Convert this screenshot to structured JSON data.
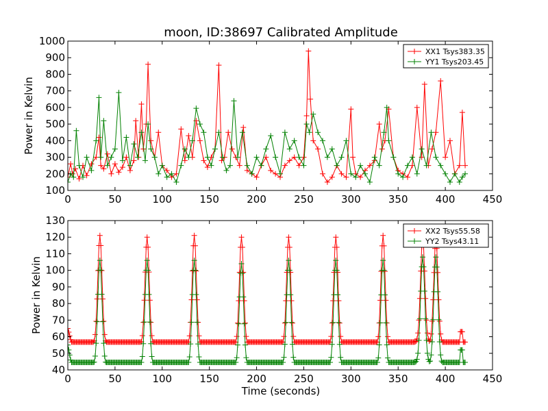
{
  "figure": {
    "title": "moon, ID:38697 Calibrated Amplitude",
    "xlabel": "Time (seconds)"
  },
  "chart_data": [
    {
      "type": "line",
      "ylabel": "Power in Kelvin",
      "xlim": [
        0,
        450
      ],
      "ylim": [
        100,
        1000
      ],
      "xticks": [
        0,
        50,
        100,
        150,
        200,
        250,
        300,
        350,
        400,
        450
      ],
      "yticks": [
        100,
        200,
        300,
        400,
        500,
        600,
        700,
        800,
        900,
        1000
      ],
      "grid": false,
      "legend_position": "top-right",
      "marker": "+",
      "series": [
        {
          "name": "XX1 Tsys383.35",
          "color": "#ff0000",
          "x": [
            0,
            3,
            5,
            8,
            12,
            16,
            20,
            25,
            30,
            33,
            35,
            38,
            42,
            46,
            50,
            54,
            58,
            62,
            66,
            70,
            72,
            75,
            78,
            80,
            83,
            85,
            88,
            92,
            96,
            100,
            105,
            110,
            115,
            120,
            124,
            128,
            132,
            136,
            140,
            144,
            148,
            152,
            156,
            160,
            163,
            166,
            170,
            174,
            178,
            182,
            186,
            190,
            195,
            200,
            205,
            210,
            215,
            220,
            225,
            230,
            235,
            240,
            245,
            250,
            253,
            255,
            257,
            260,
            265,
            270,
            275,
            280,
            285,
            290,
            295,
            300,
            302,
            305,
            310,
            315,
            320,
            325,
            330,
            333,
            336,
            340,
            345,
            350,
            355,
            360,
            365,
            370,
            375,
            378,
            382,
            386,
            390,
            395,
            400,
            405,
            410,
            415,
            418,
            421
          ],
          "values": [
            180,
            260,
            200,
            230,
            170,
            250,
            190,
            260,
            300,
            420,
            250,
            230,
            320,
            200,
            260,
            210,
            240,
            300,
            220,
            280,
            520,
            300,
            620,
            350,
            500,
            860,
            400,
            300,
            450,
            250,
            220,
            180,
            200,
            470,
            280,
            430,
            300,
            520,
            400,
            280,
            240,
            300,
            350,
            855,
            280,
            300,
            450,
            350,
            300,
            250,
            480,
            220,
            200,
            180,
            250,
            300,
            220,
            200,
            180,
            250,
            280,
            300,
            250,
            300,
            550,
            940,
            650,
            400,
            350,
            200,
            150,
            180,
            250,
            200,
            180,
            590,
            300,
            200,
            180,
            220,
            250,
            280,
            500,
            350,
            400,
            590,
            300,
            220,
            200,
            180,
            250,
            600,
            300,
            740,
            250,
            350,
            450,
            760,
            300,
            400,
            200,
            250,
            570,
            250
          ]
        },
        {
          "name": "YY1 Tsys203.45",
          "color": "#008000",
          "x": [
            0,
            3,
            6,
            9,
            12,
            16,
            20,
            25,
            30,
            33,
            35,
            38,
            42,
            46,
            50,
            54,
            58,
            62,
            66,
            70,
            74,
            78,
            82,
            85,
            88,
            92,
            96,
            100,
            105,
            110,
            115,
            120,
            124,
            128,
            132,
            136,
            140,
            144,
            148,
            152,
            156,
            160,
            164,
            168,
            172,
            176,
            180,
            185,
            190,
            195,
            200,
            205,
            210,
            215,
            220,
            225,
            230,
            235,
            240,
            245,
            250,
            253,
            256,
            260,
            265,
            270,
            275,
            280,
            285,
            290,
            295,
            300,
            305,
            310,
            315,
            320,
            325,
            330,
            335,
            338,
            340,
            345,
            350,
            355,
            360,
            365,
            370,
            375,
            380,
            385,
            390,
            395,
            400,
            405,
            410,
            415,
            418,
            421
          ],
          "values": [
            150,
            200,
            180,
            460,
            250,
            180,
            300,
            220,
            400,
            660,
            300,
            520,
            250,
            300,
            350,
            690,
            280,
            420,
            250,
            380,
            300,
            450,
            280,
            500,
            350,
            300,
            200,
            250,
            180,
            200,
            150,
            250,
            350,
            300,
            400,
            595,
            500,
            450,
            300,
            250,
            350,
            450,
            300,
            220,
            250,
            640,
            300,
            450,
            250,
            200,
            300,
            250,
            350,
            430,
            300,
            200,
            450,
            350,
            400,
            300,
            250,
            500,
            450,
            560,
            450,
            400,
            300,
            350,
            250,
            300,
            400,
            200,
            180,
            250,
            200,
            150,
            300,
            250,
            450,
            600,
            400,
            300,
            200,
            180,
            250,
            300,
            200,
            350,
            250,
            450,
            300,
            250,
            200,
            150,
            200,
            150,
            180,
            200
          ]
        }
      ]
    },
    {
      "type": "line",
      "ylabel": "Power in Kelvin",
      "xlabel": "Time (seconds)",
      "xlim": [
        0,
        450
      ],
      "ylim": [
        40,
        130
      ],
      "xticks": [
        0,
        50,
        100,
        150,
        200,
        250,
        300,
        350,
        400,
        450
      ],
      "yticks": [
        40,
        50,
        60,
        70,
        80,
        90,
        100,
        110,
        120,
        130
      ],
      "grid": false,
      "legend_position": "top-right",
      "marker": "+",
      "series": [
        {
          "name": "XX2 Tsys55.58",
          "color": "#ff0000",
          "baseline": [
            [
              0,
              65
            ],
            [
              4,
              56
            ],
            [
              30,
              56
            ],
            [
              40,
              55
            ],
            [
              80,
              55
            ],
            [
              90,
              55
            ],
            [
              130,
              55
            ],
            [
              140,
              54.5
            ],
            [
              180,
              54.5
            ],
            [
              190,
              54.5
            ],
            [
              230,
              54.5
            ],
            [
              240,
              54.5
            ],
            [
              280,
              54.5
            ],
            [
              292,
              54.5
            ],
            [
              300,
              54
            ],
            [
              330,
              54
            ],
            [
              345,
              55
            ],
            [
              365,
              55
            ],
            [
              370,
              57
            ],
            [
              395,
              56
            ],
            [
              400,
              54
            ],
            [
              415,
              54
            ],
            [
              416,
              63
            ],
            [
              418,
              63
            ],
            [
              419,
              54
            ],
            [
              421,
              54
            ]
          ],
          "peaks": [
            [
              34,
              121
            ],
            [
              84,
              120
            ],
            [
              134,
              121
            ],
            [
              184,
              120
            ],
            [
              234,
              120
            ],
            [
              284,
              120
            ],
            [
              334,
              121
            ],
            [
              376,
              120
            ],
            [
              390,
              119
            ]
          ],
          "peak_width": 3.2
        },
        {
          "name": "YY2 Tsys43.11",
          "color": "#008000",
          "baseline": [
            [
              0,
              55
            ],
            [
              4,
              43
            ],
            [
              30,
              43
            ],
            [
              40,
              42.5
            ],
            [
              80,
              42.5
            ],
            [
              90,
              42.5
            ],
            [
              130,
              42.5
            ],
            [
              140,
              42
            ],
            [
              180,
              42
            ],
            [
              230,
              42
            ],
            [
              280,
              42
            ],
            [
              330,
              41.5
            ],
            [
              345,
              42
            ],
            [
              365,
              42
            ],
            [
              370,
              45
            ],
            [
              395,
              43
            ],
            [
              400,
              41
            ],
            [
              415,
              41
            ],
            [
              416,
              52
            ],
            [
              418,
              52
            ],
            [
              419,
              41
            ],
            [
              421,
              41
            ]
          ],
          "peaks": [
            [
              34,
              106
            ],
            [
              84,
              106
            ],
            [
              134,
              106
            ],
            [
              184,
              104
            ],
            [
              234,
              106
            ],
            [
              284,
              106
            ],
            [
              334,
              106
            ],
            [
              376,
              108
            ],
            [
              390,
              108
            ]
          ],
          "peak_width": 3.2
        }
      ]
    }
  ]
}
